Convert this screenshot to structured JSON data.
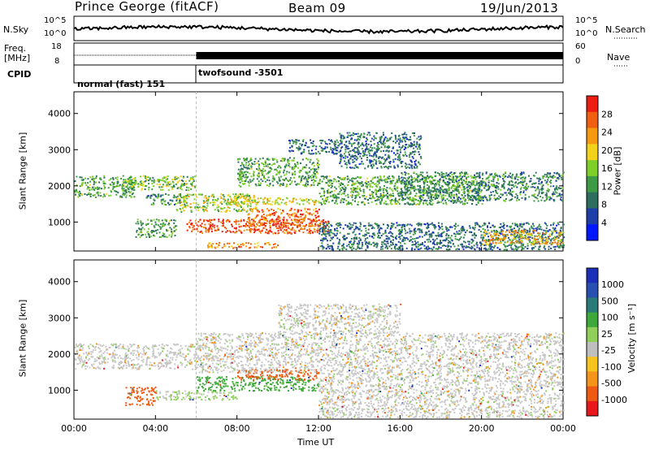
{
  "header": {
    "station": "Prince George (fitACF)",
    "beam": "Beam 09",
    "date": "19/Jun/2013"
  },
  "strip_labels": {
    "nsky": "N.Sky",
    "nsky_ticks": [
      "10^5",
      "10^0"
    ],
    "nsearch": "N.Search",
    "freq": "Freq.",
    "freq_unit": "[MHz]",
    "freq_ticks": [
      "18",
      "8"
    ],
    "nave": "Nave",
    "nave_ticks": [
      "60",
      "0"
    ],
    "cpid": "CPID",
    "cpid_modes": [
      "normal (fast) 151",
      "twofsound -3501"
    ]
  },
  "colors": {
    "power_scale": [
      "#0018ff",
      "#1e3fa8",
      "#2d6e5f",
      "#3e9a45",
      "#7fcf29",
      "#f2d21a",
      "#f59a10",
      "#f06010",
      "#ec1c12"
    ],
    "velocity_scale": [
      "#e8171b",
      "#ee5a12",
      "#f5941a",
      "#f5c41e",
      "#bfbfbf",
      "#8fcf5a",
      "#3ea83a",
      "#2a7a78",
      "#2850b0",
      "#1b2fb8"
    ],
    "gray": "#c8c8c8"
  },
  "chart_data": [
    {
      "type": "heatmap",
      "name": "power",
      "ylabel": "Slant Range [km]",
      "yticks": [
        "4000",
        "3000",
        "2000",
        "1000"
      ],
      "ylim": [
        200,
        4600
      ],
      "colorbar_label": "Power [dB]",
      "colorbar_ticks": [
        "28",
        "24",
        "20",
        "16",
        "12",
        "8",
        "4"
      ],
      "range": [
        0,
        30
      ],
      "xlim_hours": [
        0,
        24
      ],
      "regions": [
        {
          "t0": 0.0,
          "t1": 3.0,
          "r0": 1700,
          "r1": 2300,
          "level": 12
        },
        {
          "t0": 2.5,
          "t1": 6.0,
          "r0": 1900,
          "r1": 2300,
          "level": 14
        },
        {
          "t0": 3.5,
          "t1": 5.5,
          "r0": 1500,
          "r1": 1800,
          "level": 10
        },
        {
          "t0": 3.0,
          "t1": 5.0,
          "r0": 600,
          "r1": 1100,
          "level": 12
        },
        {
          "t0": 5.0,
          "t1": 9.0,
          "r0": 1300,
          "r1": 1800,
          "level": 16
        },
        {
          "t0": 5.5,
          "t1": 12.5,
          "r0": 700,
          "r1": 1100,
          "level": 26
        },
        {
          "t0": 8.5,
          "t1": 12.0,
          "r0": 900,
          "r1": 1400,
          "level": 24
        },
        {
          "t0": 7.5,
          "t1": 12.0,
          "r0": 1500,
          "r1": 1700,
          "level": 18
        },
        {
          "t0": 8.0,
          "t1": 12.0,
          "r0": 2000,
          "r1": 2800,
          "level": 12
        },
        {
          "t0": 10.5,
          "t1": 13.0,
          "r0": 2900,
          "r1": 3300,
          "level": 8
        },
        {
          "t0": 12.0,
          "t1": 20.0,
          "r0": 1500,
          "r1": 2300,
          "level": 12
        },
        {
          "t0": 13.0,
          "t1": 17.0,
          "r0": 2500,
          "r1": 3500,
          "level": 8
        },
        {
          "t0": 16.0,
          "t1": 24.0,
          "r0": 1600,
          "r1": 2400,
          "level": 10
        },
        {
          "t0": 12.0,
          "t1": 24.0,
          "r0": 250,
          "r1": 1000,
          "level": 8
        },
        {
          "t0": 20.0,
          "t1": 24.0,
          "r0": 400,
          "r1": 800,
          "level": 20
        },
        {
          "t0": 6.5,
          "t1": 10.0,
          "r0": 300,
          "r1": 450,
          "level": 22
        }
      ]
    },
    {
      "type": "heatmap",
      "name": "velocity",
      "ylabel": "Slant Range [km]",
      "yticks": [
        "4000",
        "3000",
        "2000",
        "1000"
      ],
      "ylim": [
        200,
        4600
      ],
      "colorbar_label": "Velocity [m s⁻¹]",
      "colorbar_ticks": [
        "1000",
        "500",
        "100",
        "25",
        "-25",
        "-100",
        "-500",
        "-1000"
      ],
      "xlim_hours": [
        0,
        24
      ],
      "xticks": [
        "00:00",
        "04:00",
        "08:00",
        "12:00",
        "16:00",
        "20:00",
        "00:00"
      ],
      "xlabel": "Time UT",
      "regions": [
        {
          "t0": 0.0,
          "t1": 6.0,
          "r0": 1600,
          "r1": 2300,
          "v": 0
        },
        {
          "t0": 2.5,
          "t1": 4.0,
          "r0": 600,
          "r1": 1100,
          "v": -400
        },
        {
          "t0": 4.0,
          "t1": 8.0,
          "r0": 750,
          "r1": 1000,
          "v": 80
        },
        {
          "t0": 6.0,
          "t1": 12.0,
          "r0": 1000,
          "r1": 1400,
          "v": 200
        },
        {
          "t0": 8.0,
          "t1": 12.0,
          "r0": 1300,
          "r1": 1600,
          "v": -200
        },
        {
          "t0": 6.0,
          "t1": 24.0,
          "r0": 1500,
          "r1": 2600,
          "v": 0
        },
        {
          "t0": 10.0,
          "t1": 16.0,
          "r0": 2600,
          "r1": 3400,
          "v": 0
        },
        {
          "t0": 12.0,
          "t1": 24.0,
          "r0": 250,
          "r1": 1500,
          "v": 0
        }
      ]
    }
  ]
}
